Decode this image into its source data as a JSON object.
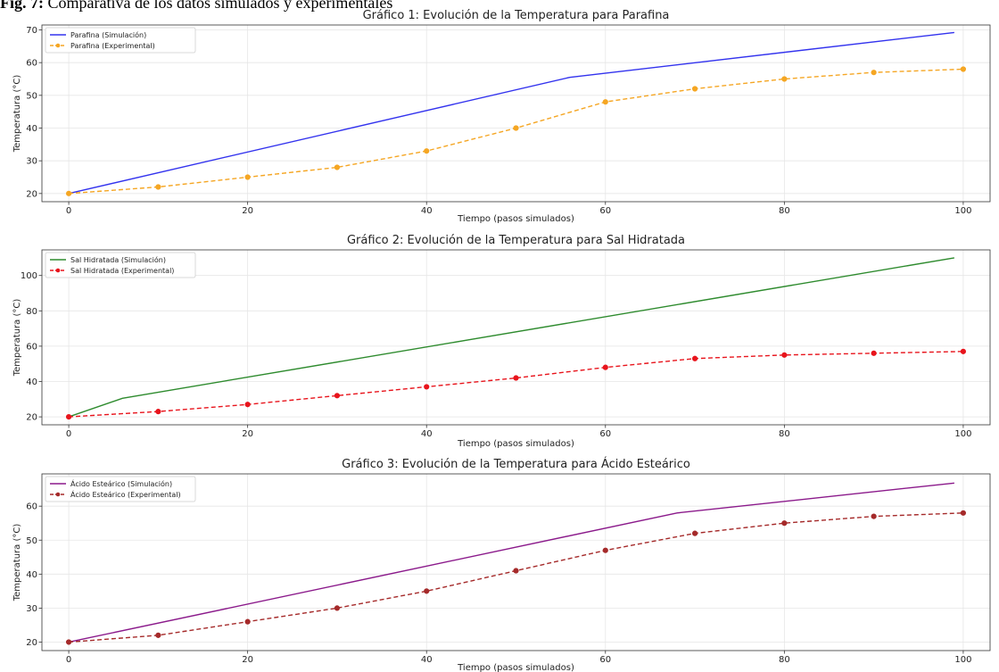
{
  "figure": {
    "caption_bold": "Fig. 7:",
    "caption_text": " Comparativa de los datos simulados y experimentales"
  },
  "chart_data": [
    {
      "type": "line",
      "title": "Gráfico 1: Evolución de la Temperatura para Parafina",
      "xlabel": "Tiempo (pasos simulados)",
      "ylabel": "Temperatura (°C)",
      "xlim": [
        -3,
        103
      ],
      "ylim": [
        17.5,
        71.5
      ],
      "xticks": [
        0,
        20,
        40,
        60,
        80,
        100
      ],
      "yticks": [
        20,
        30,
        40,
        50,
        60,
        70
      ],
      "grid": true,
      "legend_position": "top-left",
      "series": [
        {
          "name": "Parafina (Simulación)",
          "style": "solid",
          "color": "#3333ee",
          "x": [
            0,
            56,
            99
          ],
          "y": [
            20,
            55.5,
            69.2
          ]
        },
        {
          "name": "Parafina (Experimental)",
          "style": "dashed-markers",
          "color": "#f5a623",
          "x": [
            0,
            10,
            20,
            30,
            40,
            50,
            60,
            70,
            80,
            90,
            100
          ],
          "y": [
            20,
            22,
            25,
            28,
            33,
            40,
            48,
            52,
            55,
            57,
            58
          ]
        }
      ]
    },
    {
      "type": "line",
      "title": "Gráfico 2: Evolución de la Temperatura para Sal Hidratada",
      "xlabel": "Tiempo (pasos simulados)",
      "ylabel": "Temperatura (°C)",
      "xlim": [
        -3,
        103
      ],
      "ylim": [
        15.5,
        114.5
      ],
      "xticks": [
        0,
        20,
        40,
        60,
        80,
        100
      ],
      "yticks": [
        20,
        40,
        60,
        80,
        100
      ],
      "grid": true,
      "legend_position": "top-left",
      "series": [
        {
          "name": "Sal Hidratada (Simulación)",
          "style": "solid",
          "color": "#2e8b2e",
          "x": [
            0,
            6,
            99
          ],
          "y": [
            20,
            30.5,
            110
          ]
        },
        {
          "name": "Sal Hidratada (Experimental)",
          "style": "dashed-markers",
          "color": "#e8141c",
          "x": [
            0,
            10,
            20,
            30,
            40,
            50,
            60,
            70,
            80,
            90,
            100
          ],
          "y": [
            20,
            23,
            27,
            32,
            37,
            42,
            48,
            53,
            55,
            56,
            57
          ]
        }
      ]
    },
    {
      "type": "line",
      "title": "Gráfico 3: Evolución de la Temperatura para Ácido Esteárico",
      "xlabel": "Tiempo (pasos simulados)",
      "ylabel": "Temperatura (°C)",
      "xlim": [
        -3,
        103
      ],
      "ylim": [
        17.5,
        69.5
      ],
      "xticks": [
        0,
        20,
        40,
        60,
        80,
        100
      ],
      "yticks": [
        20,
        30,
        40,
        50,
        60
      ],
      "grid": true,
      "legend_position": "top-left",
      "series": [
        {
          "name": "Ácido Esteárico (Simulación)",
          "style": "solid",
          "color": "#8b1a8b",
          "x": [
            0,
            68,
            99
          ],
          "y": [
            20,
            58,
            66.8
          ]
        },
        {
          "name": "Ácido Esteárico (Experimental)",
          "style": "dashed-markers",
          "color": "#a52a2a",
          "x": [
            0,
            10,
            20,
            30,
            40,
            50,
            60,
            70,
            80,
            90,
            100
          ],
          "y": [
            20,
            22,
            26,
            30,
            35,
            41,
            47,
            52,
            55,
            57,
            58
          ]
        }
      ]
    }
  ]
}
